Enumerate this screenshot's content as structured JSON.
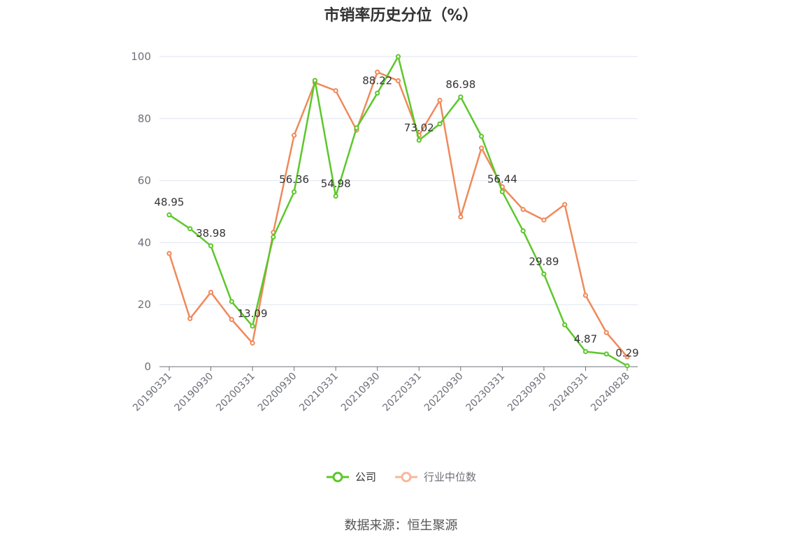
{
  "chart_data": {
    "type": "line",
    "title": "市销率历史分位（%）",
    "categories": [
      "20190331",
      "20190630",
      "20190930",
      "20191231",
      "20200331",
      "20200630",
      "20200930",
      "20201231",
      "20210331",
      "20210630",
      "20210930",
      "20211231",
      "20220331",
      "20220630",
      "20220930",
      "20221231",
      "20230331",
      "20230630",
      "20230930",
      "20231231",
      "20240331",
      "20240630",
      "20240828"
    ],
    "x_tick_labels": [
      "20190331",
      "20190930",
      "20200331",
      "20200930",
      "20210331",
      "20210930",
      "20220331",
      "20220930",
      "20230331",
      "20230930",
      "20240331",
      "20240828"
    ],
    "y_tick_labels": [
      "0",
      "20",
      "40",
      "60",
      "80",
      "100"
    ],
    "ylim": [
      0,
      100
    ],
    "grid": true,
    "legend_position": "bottom",
    "series": [
      {
        "name": "公司",
        "color": "#5cc72b",
        "values": [
          48.95,
          44.5,
          38.98,
          21.0,
          13.09,
          41.8,
          56.36,
          92.3,
          54.98,
          77.0,
          88.22,
          100.0,
          73.02,
          78.3,
          86.98,
          74.3,
          56.44,
          43.8,
          29.89,
          13.5,
          4.87,
          4.1,
          0.29
        ],
        "labels": [
          "48.95",
          "",
          "38.98",
          "",
          "13.09",
          "",
          "56.36",
          "",
          "54.98",
          "",
          "88.22",
          "",
          "73.02",
          "",
          "86.98",
          "",
          "56.44",
          "",
          "29.89",
          "",
          "4.87",
          "",
          "0.29"
        ]
      },
      {
        "name": "行业中位数",
        "color": "#f0895a",
        "values": [
          36.5,
          15.5,
          24.0,
          15.2,
          7.6,
          43.3,
          74.6,
          91.6,
          89.0,
          76.3,
          95.0,
          92.2,
          74.6,
          85.9,
          48.3,
          70.5,
          58.0,
          50.7,
          47.3,
          52.3,
          23.0,
          11.0,
          3.2
        ]
      }
    ]
  },
  "legend": {
    "company_label": "公司",
    "industry_label": "行业中位数"
  },
  "source_note": "数据来源：恒生聚源"
}
